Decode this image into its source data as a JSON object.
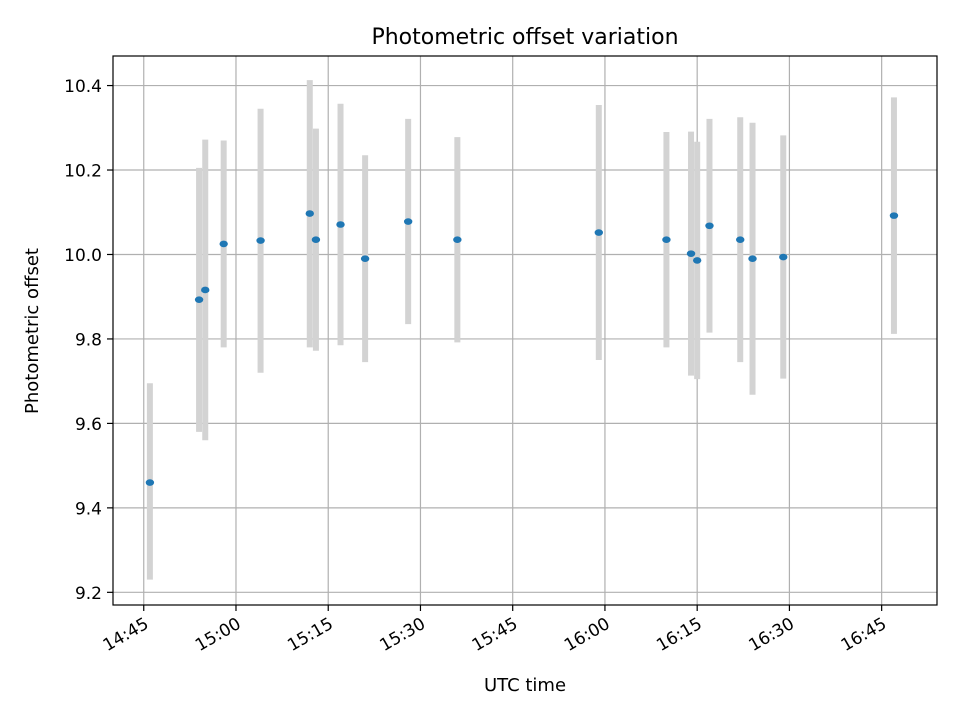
{
  "chart_data": {
    "type": "scatter",
    "title": "Photometric offset variation",
    "xlabel": "UTC time",
    "ylabel": "Photometric offset",
    "x_ticks": [
      "14:45",
      "15:00",
      "15:15",
      "15:30",
      "15:45",
      "16:00",
      "16:15",
      "16:30",
      "16:45"
    ],
    "y_ticks": [
      "9.2",
      "9.4",
      "9.6",
      "9.8",
      "10.0",
      "10.2",
      "10.4"
    ],
    "xlim": [
      "14:40",
      "16:54"
    ],
    "ylim": [
      9.17,
      10.47
    ],
    "grid": true,
    "marker_color": "#1f77b4",
    "errorbar_color": "#d3d3d3",
    "points": [
      {
        "time": "14:46",
        "value": 9.46,
        "low": 9.23,
        "high": 9.695
      },
      {
        "time": "14:54",
        "value": 9.893,
        "low": 9.58,
        "high": 10.205
      },
      {
        "time": "14:55",
        "value": 9.916,
        "low": 9.56,
        "high": 10.272
      },
      {
        "time": "14:58",
        "value": 10.025,
        "low": 9.78,
        "high": 10.27
      },
      {
        "time": "15:04",
        "value": 10.033,
        "low": 9.72,
        "high": 10.345
      },
      {
        "time": "15:12",
        "value": 10.097,
        "low": 9.78,
        "high": 10.413
      },
      {
        "time": "15:13",
        "value": 10.035,
        "low": 9.772,
        "high": 10.298
      },
      {
        "time": "15:17",
        "value": 10.071,
        "low": 9.785,
        "high": 10.357
      },
      {
        "time": "15:21",
        "value": 9.99,
        "low": 9.745,
        "high": 10.235
      },
      {
        "time": "15:28",
        "value": 10.078,
        "low": 9.835,
        "high": 10.321
      },
      {
        "time": "15:36",
        "value": 10.035,
        "low": 9.792,
        "high": 10.278
      },
      {
        "time": "15:59",
        "value": 10.052,
        "low": 9.75,
        "high": 10.354
      },
      {
        "time": "16:10",
        "value": 10.035,
        "low": 9.78,
        "high": 10.29
      },
      {
        "time": "16:14",
        "value": 10.002,
        "low": 9.713,
        "high": 10.291
      },
      {
        "time": "16:15",
        "value": 9.986,
        "low": 9.705,
        "high": 10.267
      },
      {
        "time": "16:17",
        "value": 10.068,
        "low": 9.815,
        "high": 10.321
      },
      {
        "time": "16:22",
        "value": 10.035,
        "low": 9.745,
        "high": 10.325
      },
      {
        "time": "16:24",
        "value": 9.99,
        "low": 9.668,
        "high": 10.312
      },
      {
        "time": "16:29",
        "value": 9.994,
        "low": 9.706,
        "high": 10.282
      },
      {
        "time": "16:47",
        "value": 10.092,
        "low": 9.812,
        "high": 10.372
      }
    ]
  }
}
